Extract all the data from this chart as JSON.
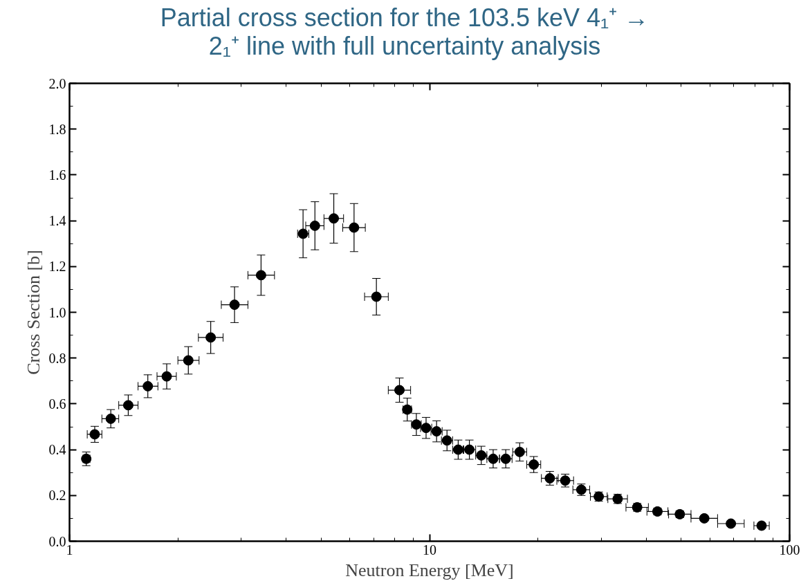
{
  "chart_data": {
    "type": "scatter",
    "title": "Partial cross section for the 103.5 keV 4₁⁺ → 2₁⁺ line with full uncertainty analysis",
    "xlabel": "Neutron Energy [MeV]",
    "ylabel": "Cross Section [b]",
    "log": "x",
    "marker": "circle",
    "color": "#000000",
    "xlim": [
      1,
      100
    ],
    "ylim": [
      0,
      2.0
    ],
    "xticks": [
      1,
      10,
      100
    ],
    "yticks": [
      {
        "value": 0,
        "label": "0.0"
      },
      {
        "value": 0.2,
        "label": "0.2"
      },
      {
        "value": 0.4,
        "label": "0.4"
      },
      {
        "value": 0.6,
        "label": "0.6"
      },
      {
        "value": 0.8,
        "label": "0.8"
      },
      {
        "value": 1.0,
        "label": "1.0"
      },
      {
        "value": 1.2,
        "label": "1.2"
      },
      {
        "value": 1.4,
        "label": "1.4"
      },
      {
        "value": 1.6,
        "label": "1.6"
      },
      {
        "value": 1.8,
        "label": "1.8"
      },
      {
        "value": 2.0,
        "label": "2.0"
      }
    ],
    "x": [
      1.113,
      1.175,
      1.302,
      1.456,
      1.65,
      1.862,
      2.138,
      2.467,
      2.873,
      3.404,
      4.453,
      4.804,
      5.42,
      6.17,
      7.118,
      8.25,
      8.67,
      9.19,
      9.78,
      10.46,
      11.18,
      12.01,
      12.9,
      13.92,
      15.02,
      16.28,
      17.8,
      19.47,
      21.58,
      23.81,
      26.39,
      29.51,
      33.3,
      37.73,
      42.95,
      49.55,
      57.95,
      68.7,
      83.6
    ],
    "values": [
      0.36,
      0.467,
      0.535,
      0.594,
      0.677,
      0.72,
      0.79,
      0.89,
      1.033,
      1.162,
      1.343,
      1.378,
      1.41,
      1.37,
      1.068,
      0.66,
      0.575,
      0.51,
      0.495,
      0.48,
      0.44,
      0.4,
      0.4,
      0.375,
      0.36,
      0.36,
      0.39,
      0.335,
      0.275,
      0.265,
      0.225,
      0.195,
      0.185,
      0.148,
      0.13,
      0.118,
      0.1,
      0.077,
      0.068
    ],
    "errors": [
      0.03,
      0.035,
      0.04,
      0.045,
      0.05,
      0.055,
      0.06,
      0.07,
      0.078,
      0.088,
      0.105,
      0.105,
      0.108,
      0.105,
      0.08,
      0.053,
      0.05,
      0.048,
      0.046,
      0.046,
      0.045,
      0.042,
      0.042,
      0.04,
      0.04,
      0.04,
      0.04,
      0.035,
      0.03,
      0.028,
      0.025,
      0.02,
      0.02,
      0.017,
      0.015,
      0.015,
      0.01,
      0.01,
      0.01
    ],
    "xerrors": [
      [
        1.09,
        1.14
      ],
      [
        1.12,
        1.23
      ],
      [
        1.23,
        1.37
      ],
      [
        1.37,
        1.55
      ],
      [
        1.55,
        1.76
      ],
      [
        1.75,
        1.98
      ],
      [
        2.0,
        2.29
      ],
      [
        2.28,
        2.67
      ],
      [
        2.64,
        3.13
      ],
      [
        3.13,
        3.71
      ],
      [
        4.3,
        4.62
      ],
      [
        4.53,
        5.09
      ],
      [
        5.09,
        5.77
      ],
      [
        5.74,
        6.63
      ],
      [
        6.6,
        7.68
      ],
      [
        7.68,
        8.86
      ],
      [
        8.44,
        8.91
      ],
      [
        8.91,
        9.48
      ],
      [
        9.44,
        10.14
      ],
      [
        10.09,
        10.84
      ],
      [
        10.79,
        11.59
      ],
      [
        11.59,
        12.45
      ],
      [
        12.39,
        13.43
      ],
      [
        13.43,
        14.43
      ],
      [
        14.43,
        15.64
      ],
      [
        15.64,
        16.95
      ],
      [
        17.02,
        18.61
      ],
      [
        18.62,
        20.36
      ],
      [
        20.45,
        22.77
      ],
      [
        22.57,
        25.12
      ],
      [
        25.01,
        27.84
      ],
      [
        27.97,
        31.14
      ],
      [
        31.28,
        35.45
      ],
      [
        35.12,
        40.53
      ],
      [
        40.16,
        45.93
      ],
      [
        46.13,
        53.23
      ],
      [
        53.23,
        63.09
      ],
      [
        63.1,
        74.8
      ],
      [
        79.6,
        87.8
      ]
    ]
  }
}
